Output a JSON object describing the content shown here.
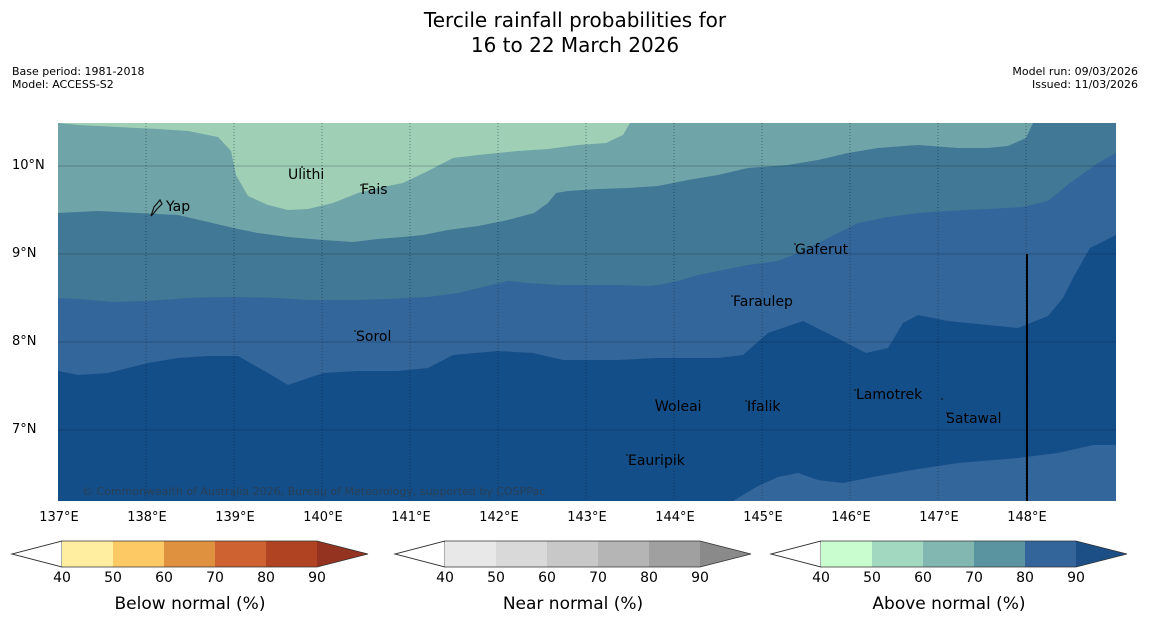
{
  "title": {
    "line1": "Tercile rainfall probabilities for",
    "line2": "16 to 22 March 2026"
  },
  "meta": {
    "base_period": "Base period: 1981-2018",
    "model": "Model: ACCESS-S2",
    "model_run": "Model run: 09/03/2026",
    "issued": "Issued: 11/03/2026"
  },
  "map": {
    "x_labels": [
      "137°E",
      "138°E",
      "139°E",
      "140°E",
      "141°E",
      "142°E",
      "143°E",
      "144°E",
      "145°E",
      "146°E",
      "147°E",
      "148°E"
    ],
    "y_labels": [
      "10°N",
      "9°N",
      "8°N",
      "7°N"
    ],
    "places": [
      "Yap",
      "Ulithi",
      "Fais",
      "Gaferut",
      "Faraulep",
      "Sorol",
      "Woleai",
      "Ifalik",
      "Lamotrek",
      "Satawal",
      "Eauripik"
    ],
    "copyright": "© Commonwealth of Australia 2026, Bureau of Meteorology, supported by COSPPac",
    "colors": {
      "c40_50": "#9fd0b5",
      "c50_60": "#6fa4a8",
      "c60_70": "#417895",
      "c70_80": "#33669a",
      "c80_90": "#144e88"
    }
  },
  "colorbars": {
    "below": {
      "label": "Below normal (%)",
      "ticks": [
        "40",
        "50",
        "60",
        "70",
        "80",
        "90"
      ],
      "colors": [
        "#ffeea0",
        "#fdc964",
        "#e0913f",
        "#ce6231",
        "#b04422",
        "#933320"
      ]
    },
    "near": {
      "label": "Near normal (%)",
      "ticks": [
        "40",
        "50",
        "60",
        "70",
        "80",
        "90"
      ],
      "colors": [
        "#e8e8e8",
        "#d9d9d9",
        "#c8c8c8",
        "#b5b5b5",
        "#a0a0a0",
        "#8a8a8a"
      ]
    },
    "above": {
      "label": "Above normal (%)",
      "ticks": [
        "40",
        "50",
        "60",
        "70",
        "80",
        "90"
      ],
      "colors": [
        "#c9fdcf",
        "#a2d8bf",
        "#81b7b0",
        "#5b94a1",
        "#33659b",
        "#1b4f86"
      ]
    }
  }
}
